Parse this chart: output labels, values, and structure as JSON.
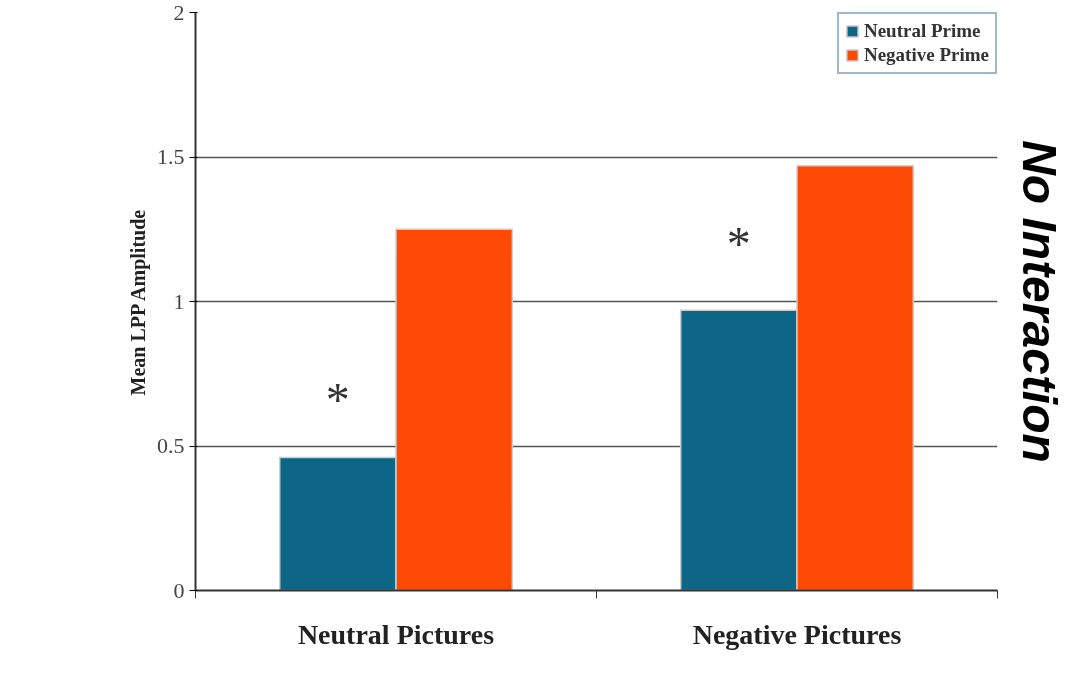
{
  "chart_data": {
    "type": "bar",
    "ylabel": "Mean LPP Amplitude",
    "categories": [
      "Neutral Pictures",
      "Negative Pictures"
    ],
    "series": [
      {
        "name": "Neutral Prime",
        "color": "#0d6685",
        "values": [
          0.46,
          0.97
        ]
      },
      {
        "name": "Negative Prime",
        "color": "#ff4a06",
        "values": [
          1.25,
          1.47
        ]
      }
    ],
    "ylim": [
      0,
      2
    ],
    "yticks": [
      0,
      0.5,
      1,
      1.5,
      2
    ],
    "grid": "y",
    "legend": "top right",
    "annotations": [
      {
        "text": "*",
        "x": "Neutral Pictures",
        "y": 0.66
      },
      {
        "text": "*",
        "x": "Negative Pictures",
        "y": 1.2
      },
      "No Interaction"
    ]
  }
}
